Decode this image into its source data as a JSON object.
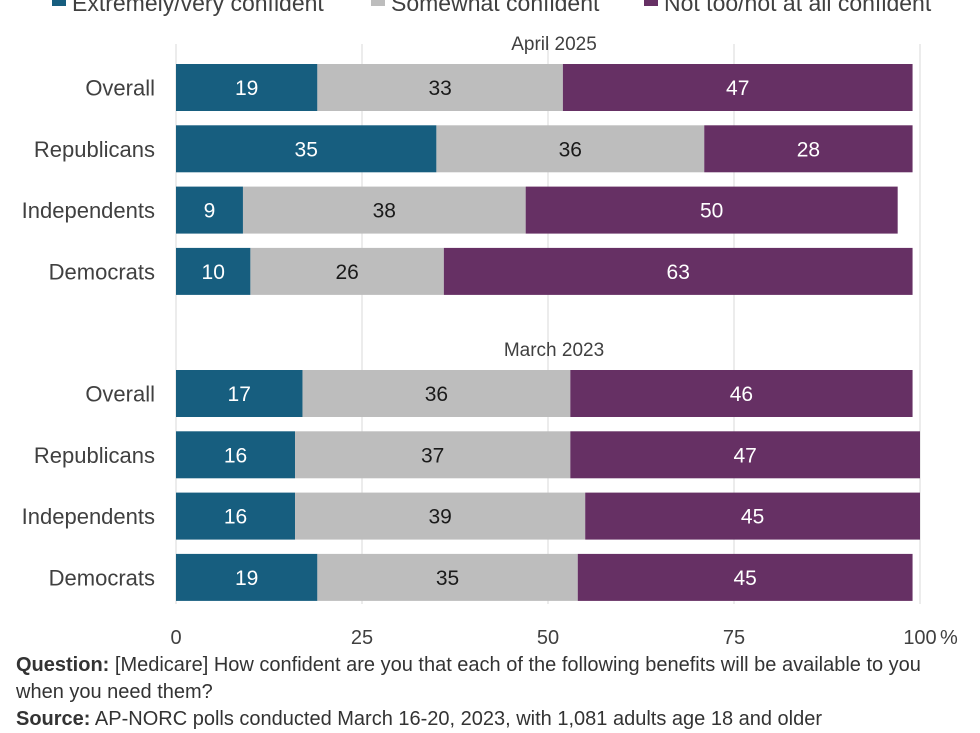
{
  "colors": {
    "extremely_very": "#175e7f",
    "somewhat": "#bdbdbd",
    "not_too": "#663064",
    "grid": "#d9d9d9",
    "text": "#404040",
    "axis_line": "#d9d9d9"
  },
  "chart_data": {
    "type": "bar",
    "orientation": "horizontal",
    "stacked": true,
    "legend": [
      {
        "key": "extremely_very",
        "label": "Extremely/very confident"
      },
      {
        "key": "somewhat",
        "label": "Somewhat confident"
      },
      {
        "key": "not_too",
        "label": "Not too/not at all confident"
      }
    ],
    "legend_position": "top",
    "x_axis": {
      "range": [
        0,
        100
      ],
      "ticks": [
        0,
        25,
        50,
        75,
        100
      ],
      "tick_labels": [
        "0",
        "25",
        "50",
        "75",
        "100"
      ],
      "unit_label": "%"
    },
    "grid": "vertical",
    "panels": [
      {
        "title": "April 2025",
        "categories": [
          "Overall",
          "Republicans",
          "Independents",
          "Democrats"
        ],
        "series": [
          {
            "name": "Extremely/very confident",
            "values": [
              19,
              35,
              9,
              10
            ]
          },
          {
            "name": "Somewhat confident",
            "values": [
              33,
              36,
              38,
              26
            ]
          },
          {
            "name": "Not too/not at all confident",
            "values": [
              47,
              28,
              50,
              63
            ]
          }
        ]
      },
      {
        "title": "March 2023",
        "categories": [
          "Overall",
          "Republicans",
          "Independents",
          "Democrats"
        ],
        "series": [
          {
            "name": "Extremely/very confident",
            "values": [
              17,
              16,
              16,
              19
            ]
          },
          {
            "name": "Somewhat confident",
            "values": [
              36,
              37,
              39,
              35
            ]
          },
          {
            "name": "Not too/not at all confident",
            "values": [
              46,
              47,
              45,
              45
            ]
          }
        ]
      }
    ]
  },
  "footer": {
    "question_label": "Question:",
    "question_text": " [Medicare] How confident are you that each of the following benefits will be available to you when you need them?",
    "source_label": "Source:",
    "source_text": " AP-NORC polls conducted March 16-20, 2023, with 1,081 adults age 18 and older"
  }
}
